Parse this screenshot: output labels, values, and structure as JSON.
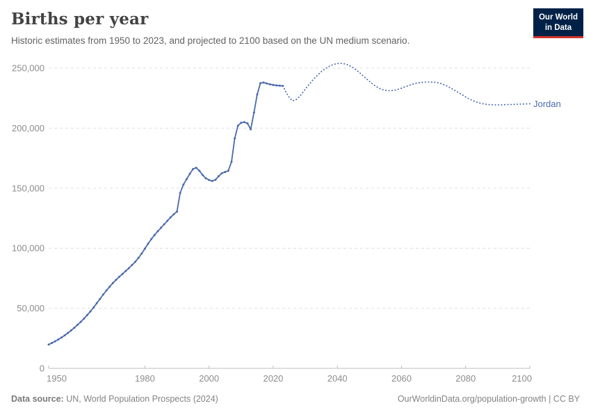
{
  "header": {
    "title": "Births per year",
    "subtitle": "Historic estimates from 1950 to 2023, and projected to 2100 based on the UN medium scenario."
  },
  "logo": {
    "line1": "Our World",
    "line2": "in Data",
    "bg_color": "#002147",
    "bar_color": "#d0342c"
  },
  "footer": {
    "source_label": "Data source:",
    "source_text": " UN, World Population Prospects (2024)",
    "attribution": "OurWorldinData.org/population-growth | CC BY"
  },
  "chart_data": {
    "type": "line",
    "title": "Births per year",
    "entity": "Jordan",
    "series_color": "#4a69ad",
    "xlabel": "",
    "ylabel": "",
    "xlim": [
      1950,
      2100
    ],
    "ylim": [
      0,
      250000
    ],
    "grid": "horizontal-dashed",
    "legend_position": "end-of-line-label",
    "x_ticks": [
      1950,
      1980,
      2000,
      2020,
      2040,
      2060,
      2080,
      2100
    ],
    "y_ticks": [
      {
        "value": 0,
        "label": "0"
      },
      {
        "value": 50000,
        "label": "50,000"
      },
      {
        "value": 100000,
        "label": "100,000"
      },
      {
        "value": 150000,
        "label": "150,000"
      },
      {
        "value": 200000,
        "label": "200,000"
      },
      {
        "value": 250000,
        "label": "250,000"
      }
    ],
    "series": [
      {
        "name": "Jordan (historic estimates)",
        "style": "solid-with-markers",
        "start_year": 1950,
        "values": [
          19800,
          21100,
          22500,
          24000,
          25700,
          27500,
          29500,
          31600,
          33800,
          36200,
          38700,
          41400,
          44300,
          47400,
          50700,
          54200,
          57800,
          61400,
          64800,
          68000,
          71000,
          73700,
          76200,
          78600,
          81000,
          83400,
          86000,
          88800,
          92000,
          95600,
          99700,
          103800,
          107600,
          111000,
          114100,
          117000,
          119900,
          122800,
          125700,
          128300,
          130500,
          146000,
          153000,
          157500,
          162000,
          166000,
          167000,
          164500,
          161000,
          158200,
          156800,
          156000,
          157000,
          160000,
          162500,
          163500,
          164500,
          172000,
          191500,
          202000,
          204500,
          205000,
          204000,
          199000,
          213000,
          228000,
          237500,
          238000,
          237200,
          236600,
          236000,
          235600,
          235400,
          235200
        ]
      },
      {
        "name": "Jordan (UN medium projection)",
        "style": "dotted",
        "start_year": 2023,
        "values": [
          235200,
          230000,
          225500,
          222800,
          223500,
          225800,
          229000,
          232500,
          235800,
          239000,
          242000,
          244700,
          247000,
          249000,
          250800,
          252200,
          253200,
          253800,
          254000,
          253700,
          253000,
          251800,
          250200,
          248200,
          246000,
          243700,
          241300,
          239000,
          236800,
          234900,
          233300,
          232200,
          231500,
          231200,
          231300,
          231700,
          232400,
          233300,
          234300,
          235300,
          236200,
          237000,
          237600,
          238000,
          238300,
          238400,
          238400,
          238300,
          238000,
          237400,
          236500,
          235300,
          233900,
          232400,
          230800,
          229200,
          227600,
          226000,
          224500,
          223200,
          222100,
          221200,
          220500,
          220000,
          219700,
          219500,
          219400,
          219400,
          219400,
          219500,
          219600,
          219700,
          219800,
          219900,
          220000,
          220100,
          220200,
          220300
        ]
      }
    ]
  }
}
